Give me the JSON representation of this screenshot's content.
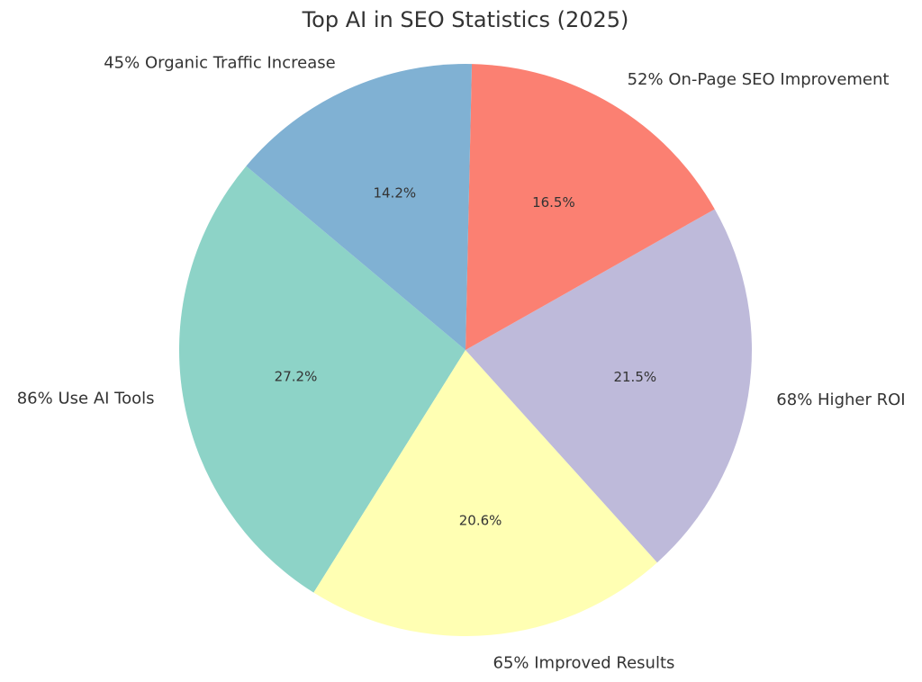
{
  "chart_data": {
    "type": "pie",
    "title": "Top AI in SEO Statistics (2025)",
    "slices": [
      {
        "label": "86% Use AI Tools",
        "value": 86,
        "pct": "27.2%",
        "color": "#8dd3c7"
      },
      {
        "label": "65% Improved Results",
        "value": 65,
        "pct": "20.6%",
        "color": "#ffffb3"
      },
      {
        "label": "68% Higher ROI",
        "value": 68,
        "pct": "21.5%",
        "color": "#bebada"
      },
      {
        "label": "52% On-Page SEO Improvement",
        "value": 52,
        "pct": "16.5%",
        "color": "#fb8072"
      },
      {
        "label": "45% Organic Traffic Increase",
        "value": 45,
        "pct": "14.2%",
        "color": "#80b1d3"
      }
    ],
    "start_angle_deg": 140,
    "direction": "counterclockwise",
    "legend": "none"
  }
}
